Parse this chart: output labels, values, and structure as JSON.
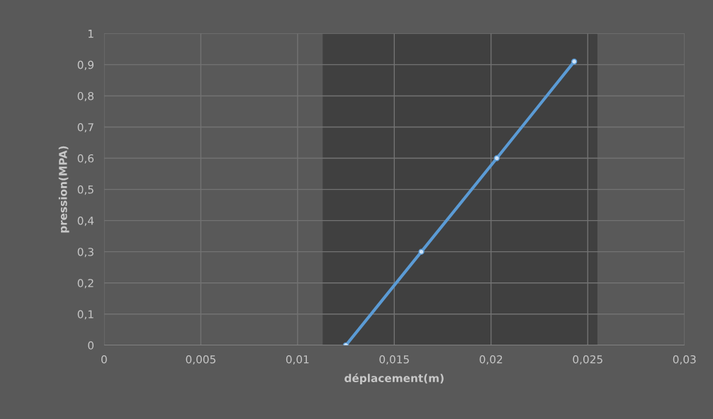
{
  "chart_data": {
    "type": "line",
    "xlabel": "déplacement(m)",
    "ylabel": "pression(MPA)",
    "x": [
      0.0125,
      0.0164,
      0.0203,
      0.0243
    ],
    "series": [
      {
        "color": "#5b9bd5",
        "values": [
          0,
          0.3,
          0.6,
          0.91
        ]
      }
    ],
    "marker": "circle",
    "line_style": "solid",
    "grid": true,
    "legend": false,
    "xlim": [
      0,
      0.03
    ],
    "ylim": [
      0,
      1
    ],
    "xticks": [
      0,
      {
        "value": 0.005,
        "label": "0,005"
      },
      {
        "value": 0.01,
        "label": "0,01"
      },
      {
        "value": 0.015,
        "label": "0,015"
      },
      {
        "value": 0.02,
        "label": "0,02"
      },
      {
        "value": 0.025,
        "label": "0,025"
      },
      {
        "value": 0.03,
        "label": "0,03"
      }
    ],
    "yticks": [
      0,
      {
        "value": 0.1,
        "label": "0,1"
      },
      {
        "value": 0.2,
        "label": "0,2"
      },
      {
        "value": 0.3,
        "label": "0,3"
      },
      {
        "value": 0.4,
        "label": "0,4"
      },
      {
        "value": 0.5,
        "label": "0,5"
      },
      {
        "value": 0.6,
        "label": "0,6"
      },
      {
        "value": 0.7,
        "label": "0,7"
      },
      {
        "value": 0.8,
        "label": "0,8"
      },
      {
        "value": 0.9,
        "label": "0,9"
      },
      1
    ],
    "bands": [
      {
        "axis": "x",
        "from": 0.0113,
        "to": 0.0255,
        "color": "#404040"
      }
    ]
  }
}
